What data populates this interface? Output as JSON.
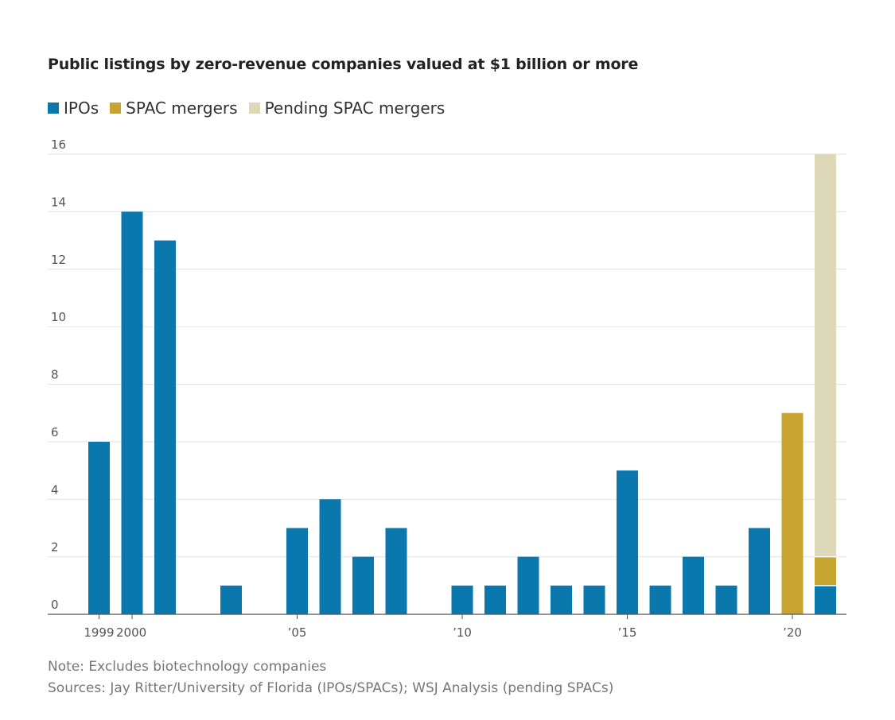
{
  "chart_data": {
    "type": "bar",
    "stacked": true,
    "title": "Public listings by zero-revenue companies valued at $1 billion or more",
    "x": [
      1999,
      2000,
      2001,
      2002,
      2003,
      2004,
      2005,
      2006,
      2007,
      2008,
      2009,
      2010,
      2011,
      2012,
      2013,
      2014,
      2015,
      2016,
      2017,
      2018,
      2019,
      2020,
      2021
    ],
    "x_tick_labels": [
      {
        "year": 1999,
        "label": "1999"
      },
      {
        "year": 2000,
        "label": "2000"
      },
      {
        "year": 2005,
        "label": "’05"
      },
      {
        "year": 2010,
        "label": "’10"
      },
      {
        "year": 2015,
        "label": "’15"
      },
      {
        "year": 2020,
        "label": "’20"
      }
    ],
    "series": [
      {
        "name": "IPOs",
        "color": "#0a78ad",
        "values": [
          6,
          14,
          13,
          0,
          1,
          0,
          3,
          4,
          2,
          3,
          0,
          1,
          1,
          2,
          1,
          1,
          5,
          1,
          2,
          1,
          3,
          0,
          1
        ]
      },
      {
        "name": "SPAC mergers",
        "color": "#c6a42f",
        "values": [
          0,
          0,
          0,
          0,
          0,
          0,
          0,
          0,
          0,
          0,
          0,
          0,
          0,
          0,
          0,
          0,
          0,
          0,
          0,
          0,
          0,
          7,
          1
        ]
      },
      {
        "name": "Pending SPAC mergers",
        "color": "#ddd9b8",
        "values": [
          0,
          0,
          0,
          0,
          0,
          0,
          0,
          0,
          0,
          0,
          0,
          0,
          0,
          0,
          0,
          0,
          0,
          0,
          0,
          0,
          0,
          0,
          14
        ]
      }
    ],
    "ylim": [
      0,
      16
    ],
    "y_ticks": [
      "0",
      "2",
      "4",
      "6",
      "8",
      "10",
      "12",
      "14",
      "16"
    ],
    "grid": true,
    "legend_position": "top-left"
  },
  "notes": {
    "note": "Note: Excludes biotechnology companies",
    "sources": "Sources: Jay Ritter/University of Florida (IPOs/SPACs); WSJ Analysis (pending SPACs)"
  }
}
